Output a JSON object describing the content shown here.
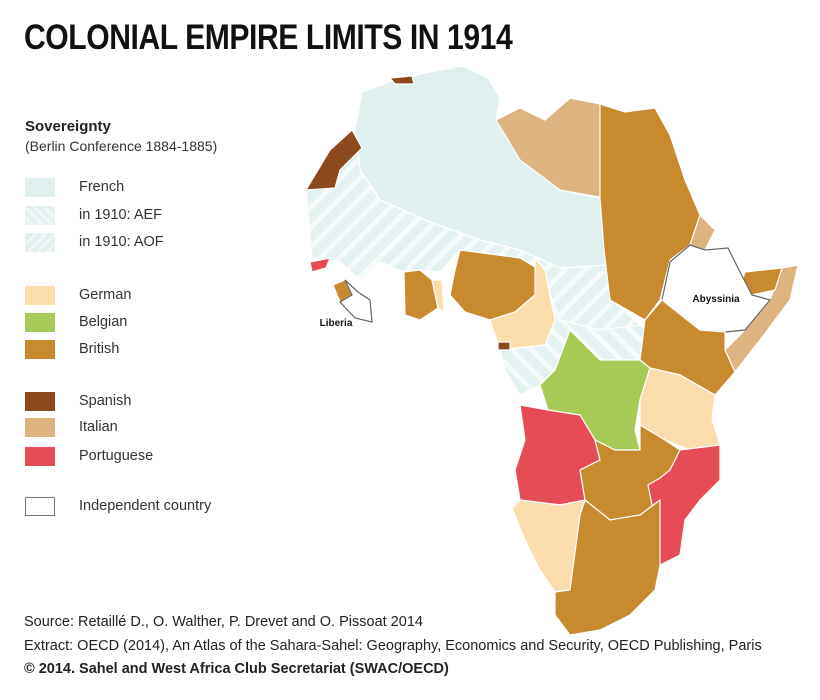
{
  "title": "COLONIAL EMPIRE LIMITS IN 1914",
  "legend": {
    "heading": "Sovereignty",
    "subheading": "(Berlin Conference 1884-1885)",
    "items": [
      {
        "label": "French",
        "color": "#dff0ef",
        "pattern": "solid"
      },
      {
        "label": "in 1910: AEF",
        "color": "#dff0ef",
        "pattern": "hatch"
      },
      {
        "label": "in 1910: AOF",
        "color": "#dff0ef",
        "pattern": "hatch-reverse"
      },
      {
        "label": "German",
        "color": "#fbdcac",
        "pattern": "solid"
      },
      {
        "label": "Belgian",
        "color": "#a7c956",
        "pattern": "solid"
      },
      {
        "label": "British",
        "color": "#c78a2f",
        "pattern": "solid"
      },
      {
        "label": "Spanish",
        "color": "#8b4a1d",
        "pattern": "solid"
      },
      {
        "label": "Italian",
        "color": "#ddb380",
        "pattern": "solid"
      },
      {
        "label": "Portuguese",
        "color": "#e64c55",
        "pattern": "solid"
      },
      {
        "label": "Independent country",
        "color": "#ffffff",
        "pattern": "outline"
      }
    ]
  },
  "map_labels": {
    "abyssinia": "Abyssinia",
    "liberia": "Liberia"
  },
  "footer": {
    "source": "Source: Retaillé D., O. Walther, P. Drevet and O. Pissoat 2014",
    "extract": "Extract: OECD (2014), An Atlas of the Sahara-Sahel: Geography, Economics  and Security, OECD Publishing, Paris",
    "copyright": "© 2014. Sahel and West Africa Club Secretariat (SWAC/OECD)"
  }
}
